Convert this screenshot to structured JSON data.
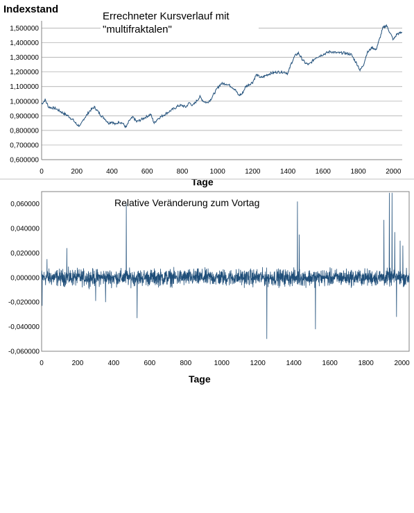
{
  "chart_data": [
    {
      "type": "line",
      "title": "Errechneter Kursverlauf mit",
      "title_line2": "\"multifraktalen\"",
      "ylabel": "Indexstand",
      "xlabel": "Tage",
      "xlim": [
        0,
        2050
      ],
      "ylim": [
        0.6,
        1.55
      ],
      "x_ticks": [
        "0",
        "200",
        "400",
        "600",
        "800",
        "1000",
        "1200",
        "1400",
        "1600",
        "1800",
        "2000"
      ],
      "y_ticks": [
        "0,600000",
        "0,700000",
        "0,800000",
        "0,900000",
        "1,000000",
        "1,100000",
        "1,200000",
        "1,300000",
        "1,400000",
        "1,500000"
      ],
      "grid": true,
      "series": [
        {
          "color": "#1f4e79",
          "x": [
            0,
            20,
            40,
            80,
            120,
            150,
            180,
            200,
            220,
            240,
            260,
            270,
            300,
            320,
            340,
            360,
            380,
            400,
            420,
            440,
            460,
            480,
            500,
            520,
            540,
            560,
            590,
            620,
            640,
            660,
            700,
            740,
            780,
            800,
            820,
            840,
            860,
            880,
            900,
            920,
            940,
            960,
            980,
            1000,
            1020,
            1050,
            1080,
            1100,
            1120,
            1140,
            1160,
            1200,
            1220,
            1250,
            1280,
            1300,
            1340,
            1380,
            1400,
            1420,
            1440,
            1460,
            1480,
            1500,
            1520,
            1560,
            1580,
            1600,
            1640,
            1680,
            1720,
            1760,
            1800,
            1810,
            1830,
            1850,
            1880,
            1900,
            1920,
            1940,
            1960,
            1980,
            2000,
            2020,
            2050
          ],
          "y": [
            0.98,
            1.01,
            0.96,
            0.95,
            0.92,
            0.9,
            0.87,
            0.84,
            0.83,
            0.88,
            0.91,
            0.93,
            0.96,
            0.93,
            0.9,
            0.88,
            0.85,
            0.86,
            0.84,
            0.86,
            0.85,
            0.82,
            0.87,
            0.89,
            0.86,
            0.87,
            0.89,
            0.91,
            0.85,
            0.88,
            0.91,
            0.94,
            0.97,
            0.97,
            0.96,
            0.99,
            0.97,
            1.0,
            1.03,
            1.0,
            0.99,
            1.01,
            1.05,
            1.09,
            1.12,
            1.12,
            1.1,
            1.08,
            1.04,
            1.05,
            1.1,
            1.13,
            1.18,
            1.16,
            1.18,
            1.19,
            1.2,
            1.2,
            1.19,
            1.26,
            1.31,
            1.33,
            1.29,
            1.26,
            1.25,
            1.3,
            1.31,
            1.32,
            1.34,
            1.33,
            1.33,
            1.32,
            1.24,
            1.21,
            1.25,
            1.33,
            1.37,
            1.35,
            1.42,
            1.5,
            1.52,
            1.47,
            1.42,
            1.46,
            1.47
          ]
        }
      ]
    },
    {
      "type": "line",
      "title": "Relative Veränderung zum Vortag",
      "xlabel": "Tage",
      "xlim": [
        0,
        2040
      ],
      "ylim": [
        -0.06,
        0.07
      ],
      "x_ticks": [
        "0",
        "200",
        "400",
        "600",
        "800",
        "1000",
        "1200",
        "1400",
        "1600",
        "1800",
        "2000"
      ],
      "y_ticks": [
        "-0,060000",
        "-0,040000",
        "-0,020000",
        "0,000000",
        "0,020000",
        "0,040000",
        "0,060000"
      ],
      "grid": false,
      "series": [
        {
          "color": "#1f4e79",
          "noise_amplitude": 0.01,
          "spikes": [
            {
              "x": 3,
              "y": -0.023
            },
            {
              "x": 30,
              "y": 0.015
            },
            {
              "x": 140,
              "y": 0.024
            },
            {
              "x": 300,
              "y": -0.019
            },
            {
              "x": 355,
              "y": -0.02
            },
            {
              "x": 470,
              "y": 0.06
            },
            {
              "x": 530,
              "y": -0.033
            },
            {
              "x": 1250,
              "y": -0.05
            },
            {
              "x": 1420,
              "y": 0.062
            },
            {
              "x": 1430,
              "y": 0.035
            },
            {
              "x": 1520,
              "y": -0.042
            },
            {
              "x": 1900,
              "y": 0.047
            },
            {
              "x": 1930,
              "y": 0.069
            },
            {
              "x": 1945,
              "y": 0.069
            },
            {
              "x": 1960,
              "y": 0.037
            },
            {
              "x": 1970,
              "y": -0.032
            },
            {
              "x": 1990,
              "y": 0.03
            },
            {
              "x": 2005,
              "y": 0.026
            }
          ]
        }
      ]
    }
  ]
}
